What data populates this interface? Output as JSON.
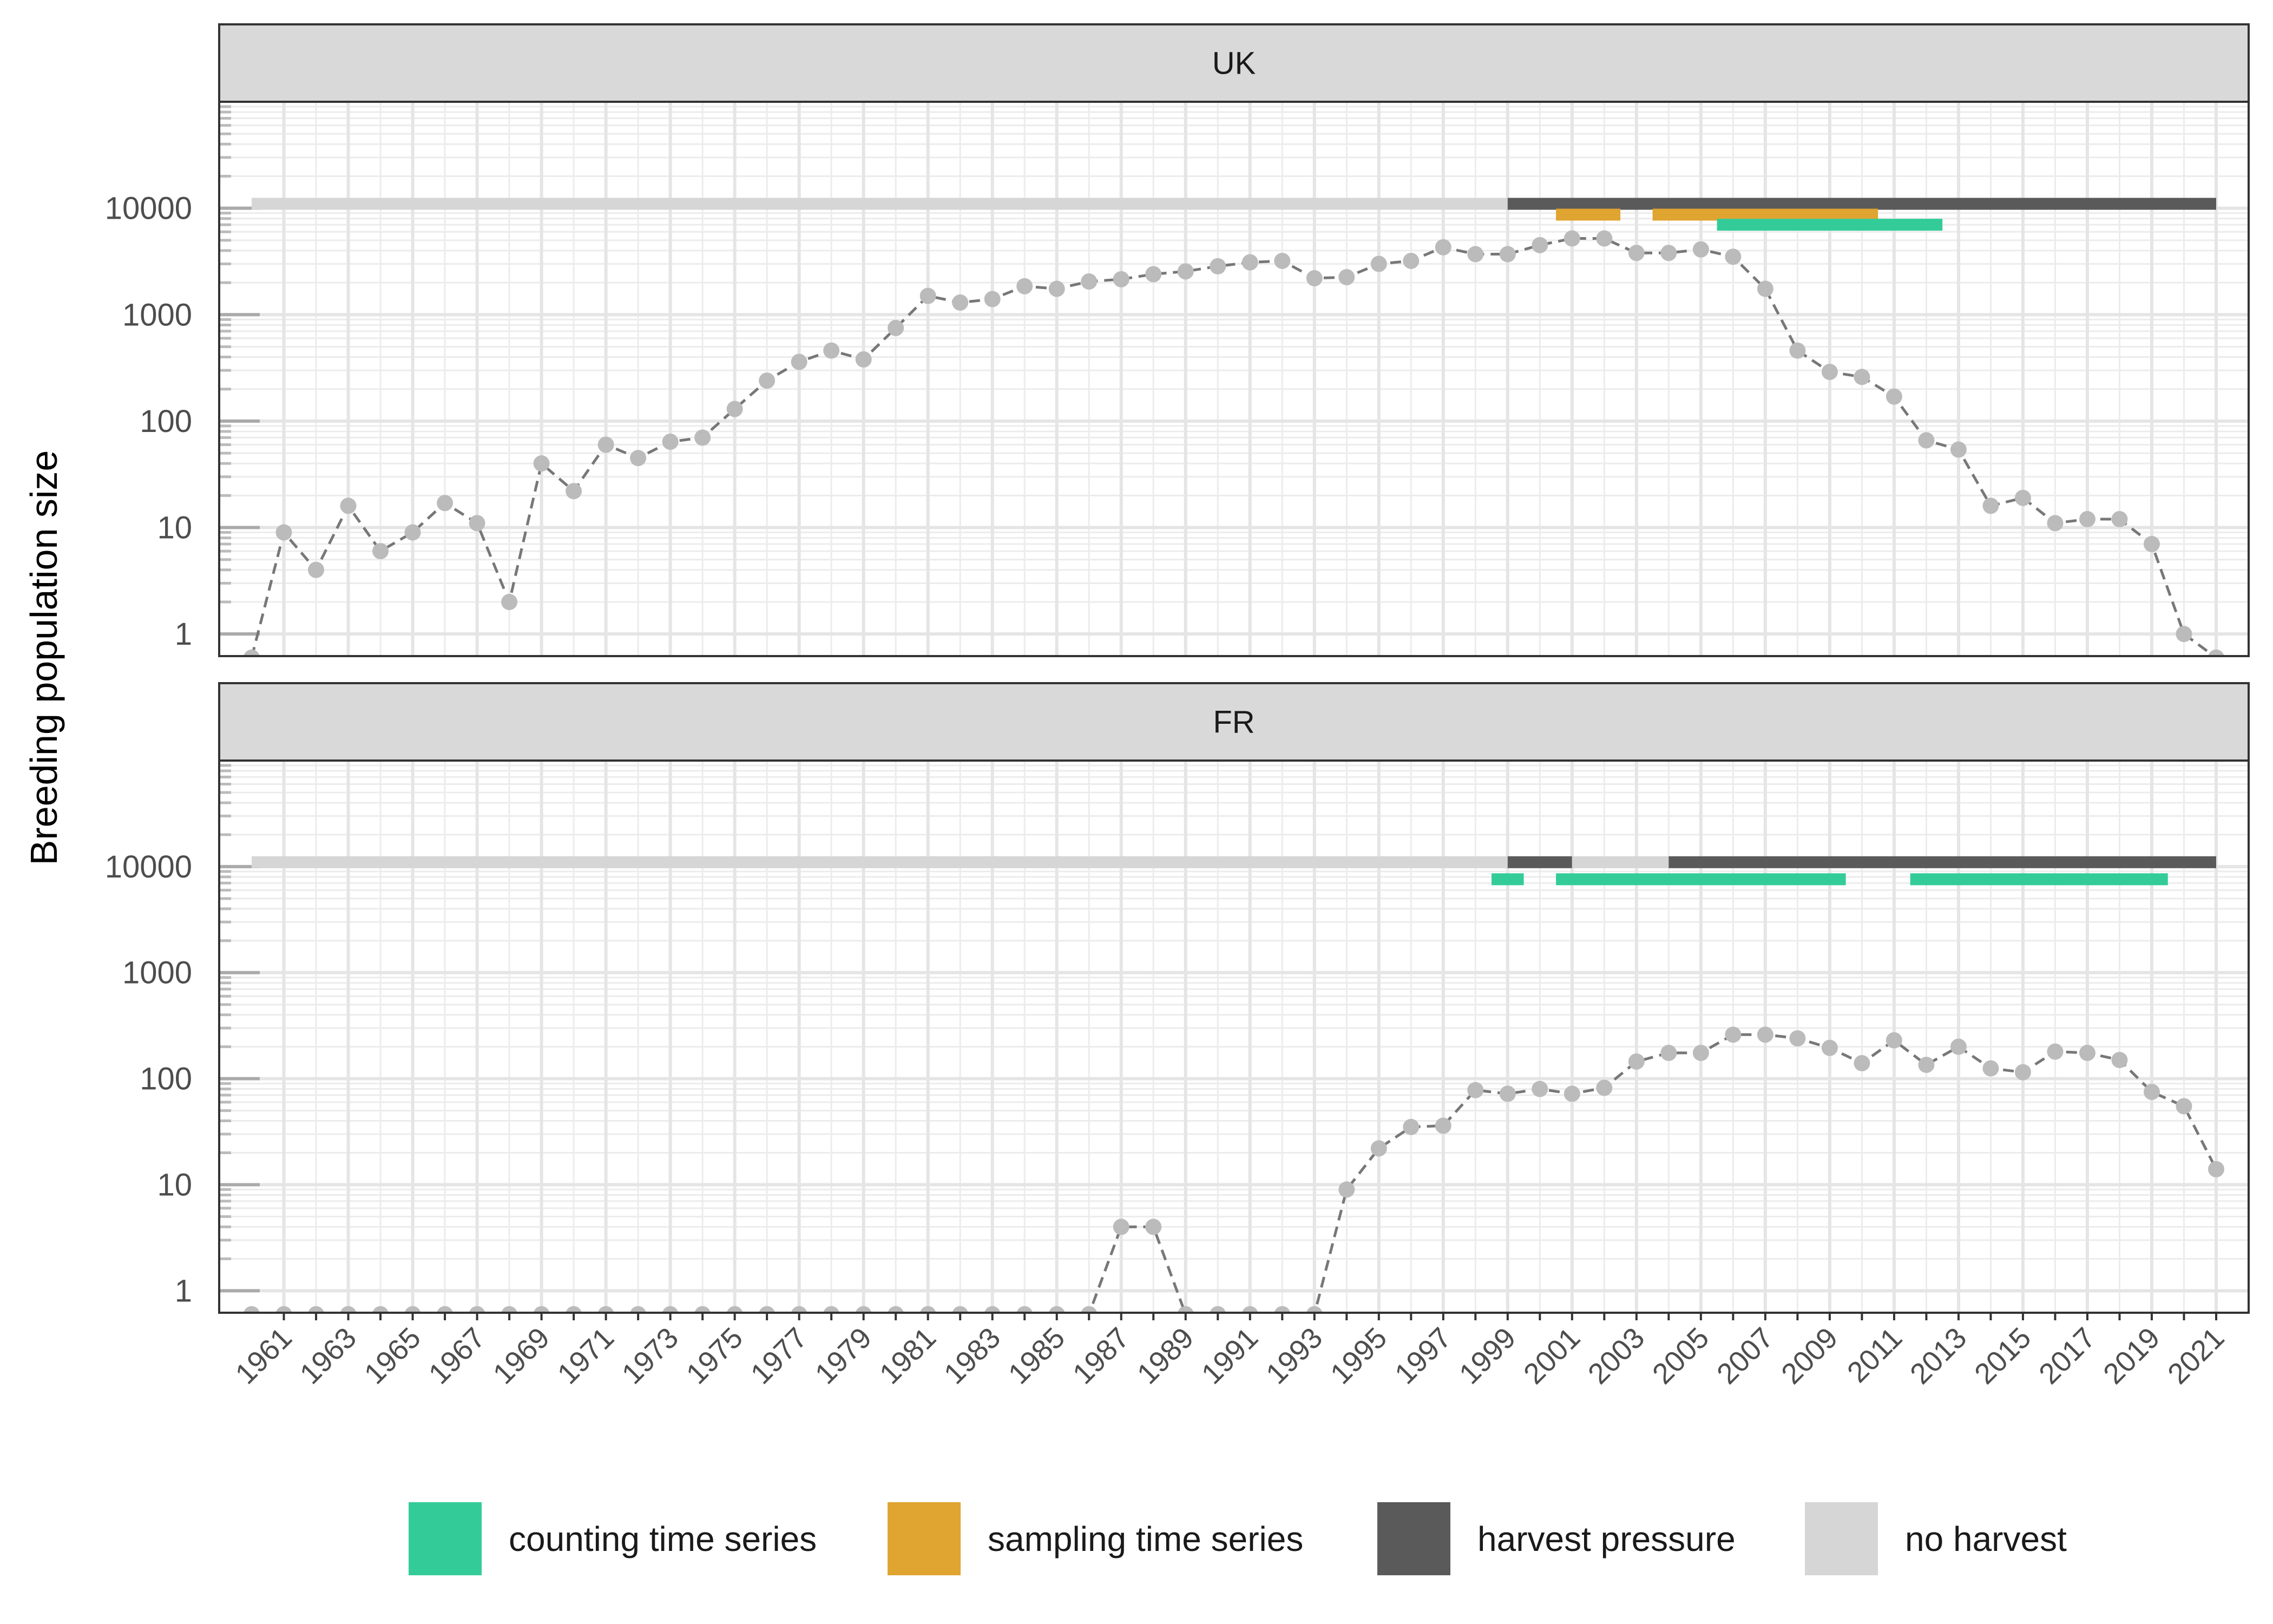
{
  "chart_data": {
    "type": "line",
    "ylabel": "Breeding population size",
    "xlabel": "",
    "yscale": "log",
    "yticks": [
      1,
      10,
      100,
      1000,
      10000
    ],
    "ytick_labels": [
      "1",
      "10",
      "100",
      "1000",
      "10000"
    ],
    "xlim": [
      1960,
      2021
    ],
    "xticks": [
      1961,
      1963,
      1965,
      1967,
      1969,
      1971,
      1973,
      1975,
      1977,
      1979,
      1981,
      1983,
      1985,
      1987,
      1989,
      1991,
      1993,
      1995,
      1997,
      1999,
      2001,
      2003,
      2005,
      2007,
      2009,
      2011,
      2013,
      2015,
      2017,
      2019,
      2021
    ],
    "grid": true,
    "legend_position": "bottom",
    "legend": [
      {
        "key": "counting",
        "label": "counting time series",
        "color": "#33CC99"
      },
      {
        "key": "sampling",
        "label": "sampling time series",
        "color": "#E0A430"
      },
      {
        "key": "harvest",
        "label": "harvest pressure",
        "color": "#5A5A5A"
      },
      {
        "key": "noharvest",
        "label": "no harvest",
        "color": "#D6D6D6"
      }
    ],
    "colors": {
      "points": "#BBBBBB",
      "line": "#777777"
    },
    "panels": [
      {
        "label": "UK",
        "series": [
          {
            "x": [
              1960,
              1961,
              1962,
              1963,
              1964,
              1965,
              1966,
              1967,
              1968,
              1969,
              1970,
              1971,
              1972,
              1973,
              1974,
              1975,
              1976,
              1977,
              1978,
              1979,
              1980,
              1981,
              1982,
              1983,
              1984,
              1985,
              1986,
              1987,
              1988,
              1989,
              1990,
              1991,
              1992,
              1993,
              1994,
              1995,
              1996,
              1997,
              1998,
              1999,
              2000,
              2001,
              2002,
              2003,
              2004,
              2005,
              2006,
              2007,
              2008,
              2009,
              2010,
              2011,
              2012,
              2013,
              2014,
              2015,
              2016,
              2017,
              2018,
              2019,
              2020,
              2021
            ],
            "y": [
              0.6,
              9,
              4,
              16,
              6,
              9,
              17,
              11,
              2,
              40,
              22,
              60,
              45,
              64,
              70,
              130,
              240,
              360,
              460,
              380,
              750,
              1500,
              1300,
              1400,
              1850,
              1750,
              2050,
              2150,
              2400,
              2550,
              2850,
              3100,
              3200,
              2200,
              2250,
              3000,
              3200,
              4300,
              3700,
              3700,
              4500,
              5200,
              5200,
              3800,
              3800,
              4100,
              3500,
              1750,
              460,
              290,
              260,
              170,
              66,
              54,
              16,
              19,
              11,
              12,
              12,
              7,
              1,
              0.6
            ]
          }
        ],
        "bars": [
          {
            "type": "noharvest",
            "start": 1960,
            "end": 1999,
            "row": 0
          },
          {
            "type": "harvest",
            "start": 1999,
            "end": 2021,
            "row": 0
          },
          {
            "type": "sampling",
            "start": 2000.5,
            "end": 2002.5,
            "row": 1
          },
          {
            "type": "sampling",
            "start": 2003.5,
            "end": 2010.5,
            "row": 1
          },
          {
            "type": "counting",
            "start": 2005.5,
            "end": 2012.5,
            "row": 2
          }
        ]
      },
      {
        "label": "FR",
        "series": [
          {
            "x": [
              1960,
              1961,
              1962,
              1963,
              1964,
              1965,
              1966,
              1967,
              1968,
              1969,
              1970,
              1971,
              1972,
              1973,
              1974,
              1975,
              1976,
              1977,
              1978,
              1979,
              1980,
              1981,
              1982,
              1983,
              1984,
              1985,
              1986,
              1987,
              1988,
              1989,
              1990,
              1991,
              1992,
              1993,
              1994,
              1995,
              1996,
              1997,
              1998,
              1999,
              2000,
              2001,
              2002,
              2003,
              2004,
              2005,
              2006,
              2007,
              2008,
              2009,
              2010,
              2011,
              2012,
              2013,
              2014,
              2015,
              2016,
              2017,
              2018,
              2019,
              2020,
              2021
            ],
            "y": [
              0.6,
              0.6,
              0.6,
              0.6,
              0.6,
              0.6,
              0.6,
              0.6,
              0.6,
              0.6,
              0.6,
              0.6,
              0.6,
              0.6,
              0.6,
              0.6,
              0.6,
              0.6,
              0.6,
              0.6,
              0.6,
              0.6,
              0.6,
              0.6,
              0.6,
              0.6,
              0.6,
              4,
              4,
              0.6,
              0.6,
              0.6,
              0.6,
              0.6,
              9,
              22,
              35,
              36,
              78,
              72,
              80,
              72,
              82,
              145,
              175,
              175,
              260,
              260,
              240,
              195,
              140,
              230,
              135,
              200,
              125,
              115,
              180,
              175,
              150,
              75,
              55,
              14
            ]
          }
        ],
        "bars": [
          {
            "type": "noharvest",
            "start": 1960,
            "end": 1999,
            "row": 0
          },
          {
            "type": "harvest",
            "start": 1999,
            "end": 2001,
            "row": 0
          },
          {
            "type": "noharvest",
            "start": 2001,
            "end": 2004,
            "row": 0
          },
          {
            "type": "harvest",
            "start": 2004,
            "end": 2021,
            "row": 0
          },
          {
            "type": "counting",
            "start": 1998.5,
            "end": 1999.5,
            "row": 1
          },
          {
            "type": "counting",
            "start": 2000.5,
            "end": 2009.5,
            "row": 1
          },
          {
            "type": "counting",
            "start": 2011.5,
            "end": 2019.5,
            "row": 1
          }
        ]
      }
    ]
  }
}
